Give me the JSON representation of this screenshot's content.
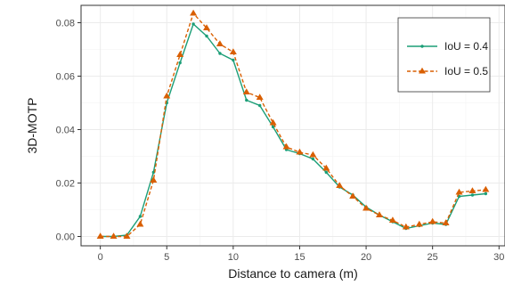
{
  "chart_data": {
    "type": "line",
    "title": "",
    "xlabel": "Distance to camera (m)",
    "ylabel": "3D-MOTP",
    "xlim": [
      -1.45,
      30.45
    ],
    "ylim": [
      -0.0035,
      0.0865
    ],
    "x_ticks": [
      0,
      5,
      10,
      15,
      20,
      25,
      30
    ],
    "x_tick_labels": [
      "0",
      "5",
      "10",
      "15",
      "20",
      "25",
      "30"
    ],
    "y_ticks": [
      0.0,
      0.02,
      0.04,
      0.06,
      0.08
    ],
    "y_tick_labels": [
      "0.00",
      "0.02",
      "0.04",
      "0.06",
      "0.08"
    ],
    "grid": true,
    "legend_position": "top-right",
    "x": [
      0,
      1,
      2,
      3,
      4,
      5,
      6,
      7,
      8,
      9,
      10,
      11,
      12,
      13,
      14,
      15,
      16,
      17,
      18,
      19,
      20,
      21,
      22,
      23,
      24,
      25,
      26,
      27,
      28,
      29
    ],
    "series": [
      {
        "name": "IoU = 0.4",
        "color": "#1b9e77",
        "line_style": "solid",
        "marker": "dot",
        "values": [
          0.0,
          0.0,
          0.0005,
          0.0075,
          0.024,
          0.05,
          0.065,
          0.0795,
          0.075,
          0.0685,
          0.066,
          0.051,
          0.049,
          0.041,
          0.0325,
          0.031,
          0.029,
          0.024,
          0.0185,
          0.0155,
          0.011,
          0.008,
          0.0055,
          0.003,
          0.004,
          0.005,
          0.0045,
          0.015,
          0.0155,
          0.016
        ]
      },
      {
        "name": "IoU = 0.5",
        "color": "#d95f02",
        "line_style": "dashed",
        "marker": "triangle",
        "values": [
          0.0,
          0.0,
          0.0,
          0.0045,
          0.021,
          0.0525,
          0.068,
          0.0835,
          0.078,
          0.072,
          0.069,
          0.054,
          0.052,
          0.0425,
          0.0335,
          0.0315,
          0.0305,
          0.0255,
          0.019,
          0.015,
          0.0105,
          0.008,
          0.006,
          0.0035,
          0.0045,
          0.0055,
          0.005,
          0.0165,
          0.017,
          0.0175
        ]
      }
    ]
  }
}
